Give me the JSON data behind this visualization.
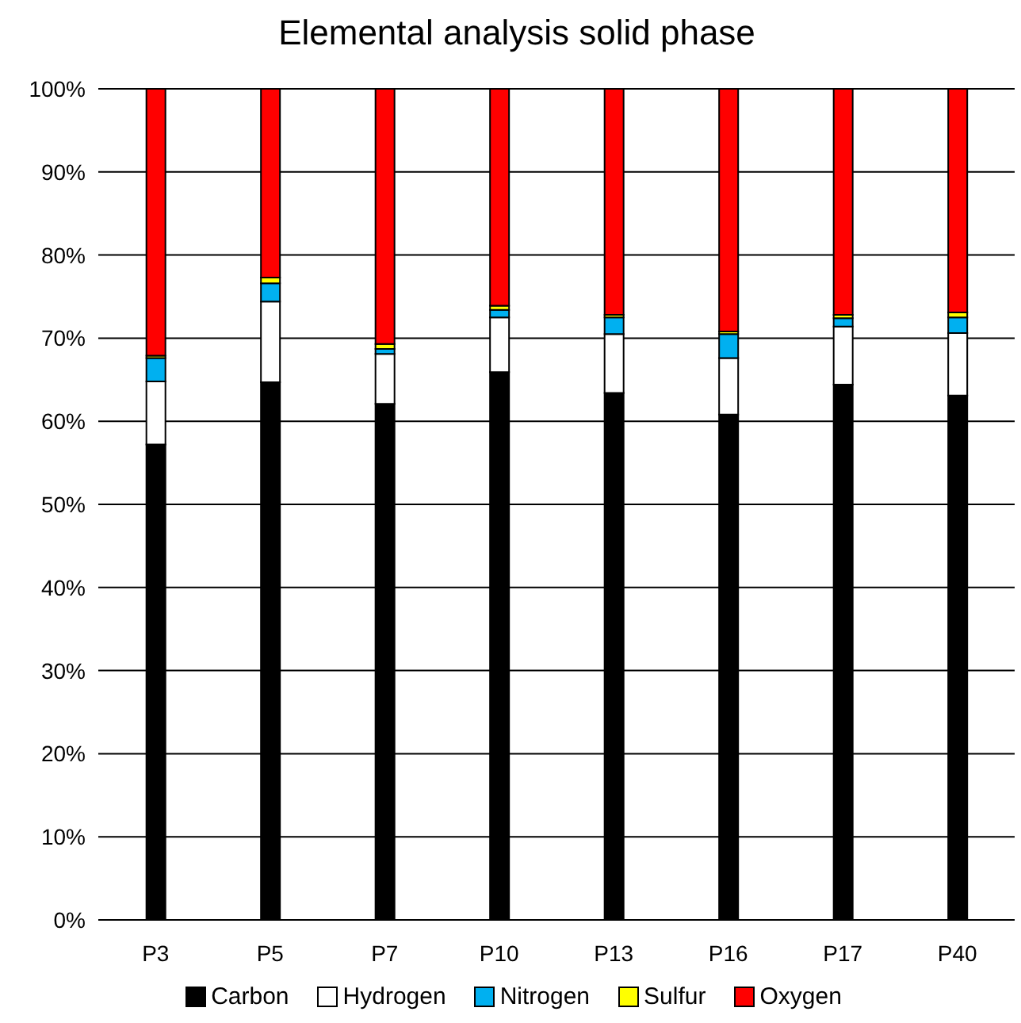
{
  "chart_data": {
    "type": "bar",
    "title": "Elemental analysis solid phase",
    "categories": [
      "P3",
      "P5",
      "P7",
      "P10",
      "P13",
      "P16",
      "P17",
      "P40"
    ],
    "series": [
      {
        "name": "Carbon",
        "color": "#000000",
        "values": [
          57.2,
          64.7,
          62.1,
          65.9,
          63.4,
          60.8,
          64.4,
          63.1
        ]
      },
      {
        "name": "Hydrogen",
        "color": "#ffffff",
        "values": [
          7.6,
          9.7,
          6.0,
          6.6,
          7.1,
          6.8,
          7.0,
          7.5
        ]
      },
      {
        "name": "Nitrogen",
        "color": "#00b0f0",
        "values": [
          2.8,
          2.2,
          0.6,
          0.9,
          2.0,
          2.9,
          1.0,
          1.9
        ]
      },
      {
        "name": "Sulfur",
        "color": "#ffff00",
        "values": [
          0.3,
          0.7,
          0.6,
          0.5,
          0.3,
          0.3,
          0.4,
          0.6
        ]
      },
      {
        "name": "Oxygen",
        "color": "#ff0000",
        "values": [
          32.1,
          22.7,
          30.7,
          26.1,
          27.2,
          29.2,
          27.2,
          26.9
        ]
      }
    ],
    "stacked": true,
    "ylim": [
      0,
      100
    ],
    "yticks": [
      {
        "value": 0,
        "label": "0%"
      },
      {
        "value": 10,
        "label": "10%"
      },
      {
        "value": 20,
        "label": "20%"
      },
      {
        "value": 30,
        "label": "30%"
      },
      {
        "value": 40,
        "label": "40%"
      },
      {
        "value": 50,
        "label": "50%"
      },
      {
        "value": 60,
        "label": "60%"
      },
      {
        "value": 70,
        "label": "70%"
      },
      {
        "value": 80,
        "label": "80%"
      },
      {
        "value": 90,
        "label": "90%"
      },
      {
        "value": 100,
        "label": "100%"
      }
    ],
    "grid": "y",
    "legend": "bottom"
  }
}
